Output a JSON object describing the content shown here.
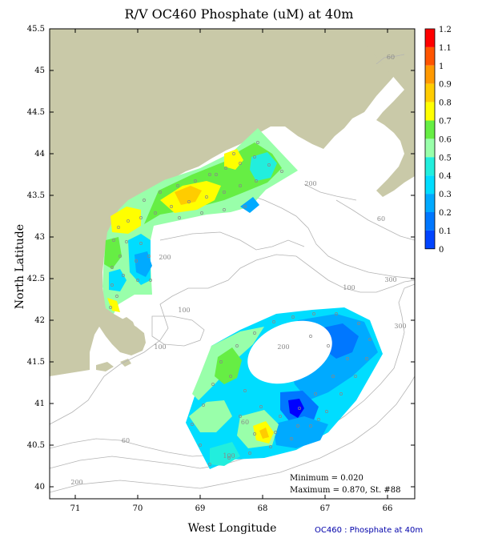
{
  "title": "R/V OC460 Phosphate (uM) at 40m",
  "axes": {
    "x_label": "West Longitude",
    "y_label": "North Latitude",
    "x_ticks": [
      "71",
      "70",
      "69",
      "68",
      "67",
      "66"
    ],
    "y_ticks": [
      "45.5",
      "45",
      "44.5",
      "44",
      "43.5",
      "43",
      "42.5",
      "42",
      "41.5",
      "41",
      "40.5",
      "40"
    ]
  },
  "colorbar": {
    "labels": [
      "1.2",
      "1.1",
      "1",
      "0.9",
      "0.8",
      "0.7",
      "0.6",
      "0.5",
      "0.4",
      "0.3",
      "0.2",
      "0.1",
      "0"
    ],
    "colors": [
      "#ff0000",
      "#ff5500",
      "#ff9900",
      "#ffcc00",
      "#ffff00",
      "#66ee44",
      "#99ffaa",
      "#22eedd",
      "#00ddff",
      "#00aaff",
      "#0077ff",
      "#0044ff",
      "#0000ff"
    ]
  },
  "contour_labels": [
    "60",
    "200",
    "60",
    "200",
    "300",
    "100",
    "100",
    "300",
    "100",
    "200",
    "60",
    "100",
    "60",
    "200"
  ],
  "stats": {
    "minimum": "Minimum = 0.020",
    "maximum": "Maximum = 0.870, St. #88"
  },
  "caption": "OC460 : Phosphate at 40m",
  "colors": {
    "land": "#c9c9a8",
    "contour": "#b4b4b4",
    "station": "#888888"
  }
}
